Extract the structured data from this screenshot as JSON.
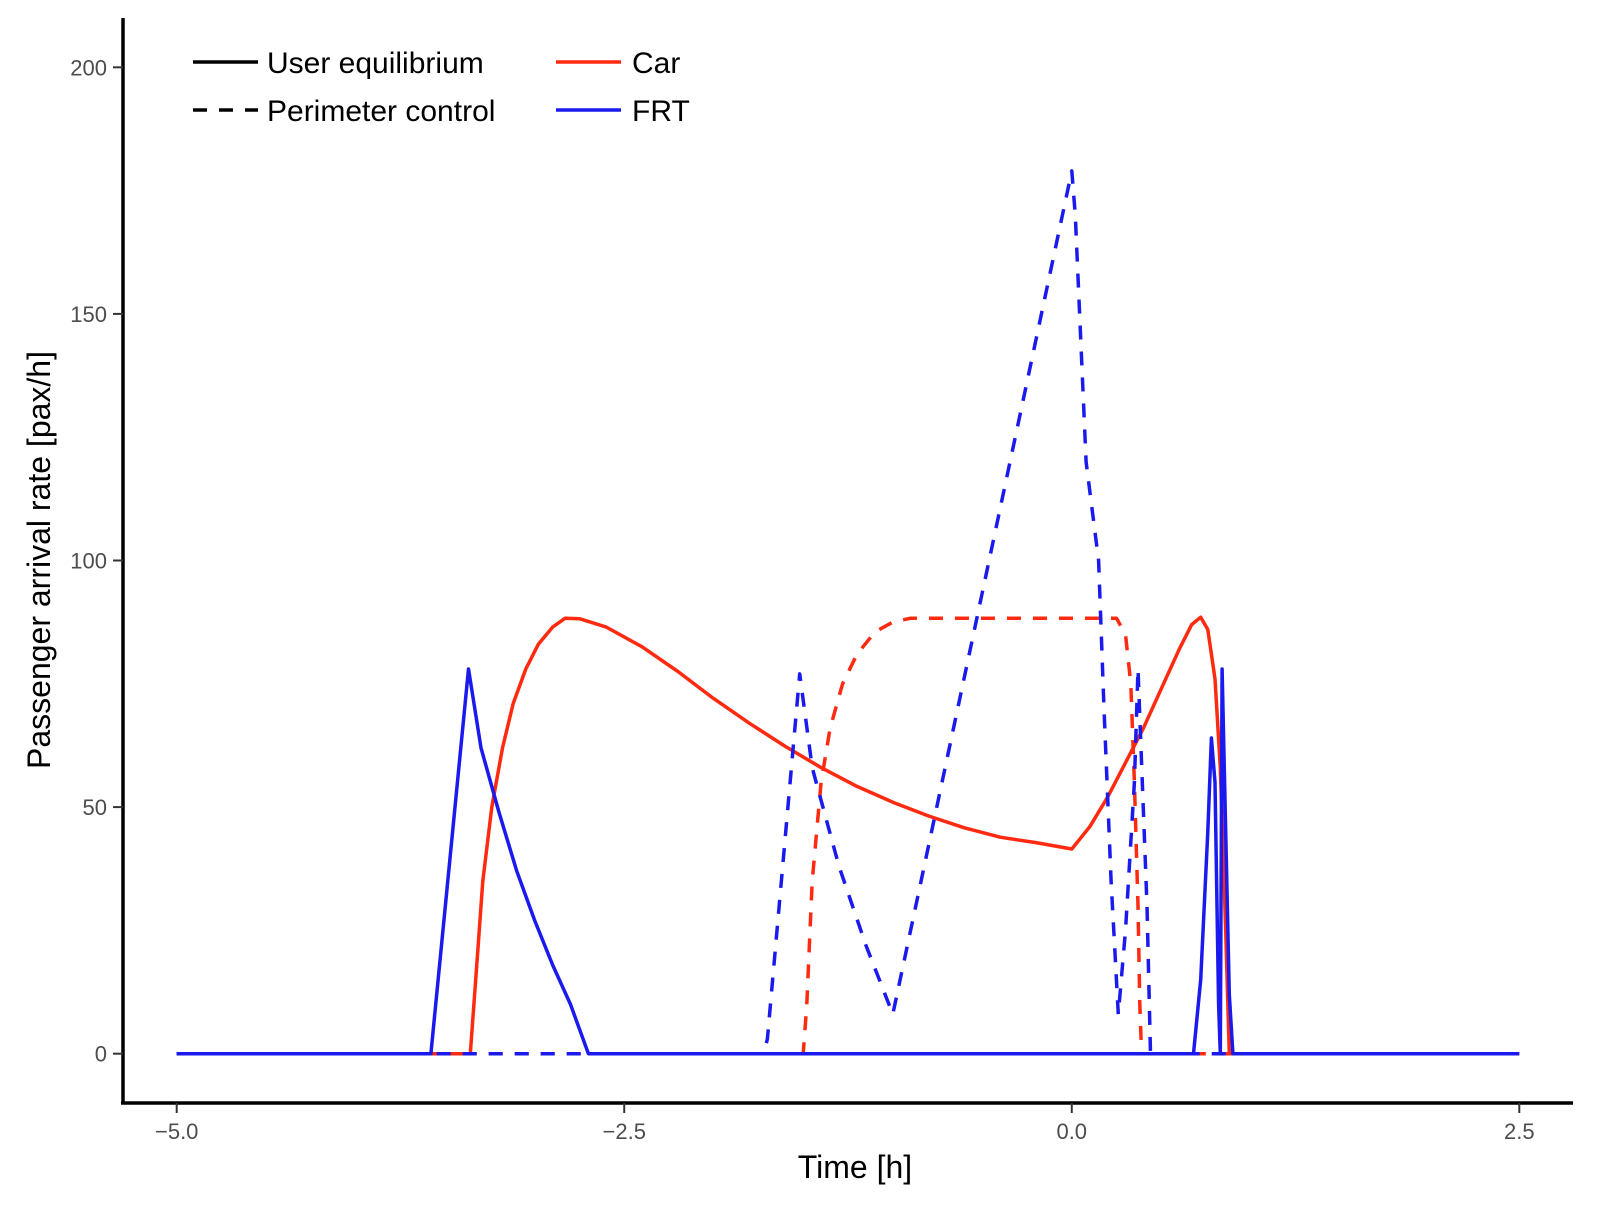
{
  "chart_data": {
    "type": "line",
    "title": "",
    "xlabel": "Time [h]",
    "ylabel": "Passenger arrival rate [pax/h]",
    "xlim": [
      -5.3,
      2.8
    ],
    "ylim": [
      -10,
      210
    ],
    "x_ticks": [
      -5.0,
      -2.5,
      0.0,
      2.5
    ],
    "x_tick_labels": [
      "−5.0",
      "−2.5",
      "0.0",
      "2.5"
    ],
    "y_ticks": [
      0,
      50,
      100,
      150,
      200
    ],
    "y_tick_labels": [
      "0",
      "50",
      "100",
      "150",
      "200"
    ],
    "grid": false,
    "legend": {
      "placement": "top-left",
      "linetype_entries": [
        {
          "label": "User equilibrium",
          "dash": "solid"
        },
        {
          "label": "Perimeter control",
          "dash": "dashed"
        }
      ],
      "color_entries": [
        {
          "label": "Car",
          "color": "#ff2a10"
        },
        {
          "label": "FRT",
          "color": "#1a1aee"
        }
      ]
    },
    "series": [
      {
        "name": "Car",
        "scenario": "User equilibrium",
        "color": "#ff2a10",
        "dash": "solid",
        "points": [
          [
            -5.0,
            0
          ],
          [
            -3.36,
            0
          ],
          [
            -3.33,
            15
          ],
          [
            -3.29,
            35
          ],
          [
            -3.24,
            50
          ],
          [
            -3.18,
            62
          ],
          [
            -3.12,
            71
          ],
          [
            -3.05,
            78
          ],
          [
            -2.98,
            83
          ],
          [
            -2.9,
            86.5
          ],
          [
            -2.83,
            88.3
          ],
          [
            -2.75,
            88.2
          ],
          [
            -2.6,
            86.5
          ],
          [
            -2.4,
            82.5
          ],
          [
            -2.2,
            77.5
          ],
          [
            -2.0,
            72
          ],
          [
            -1.8,
            67
          ],
          [
            -1.6,
            62.3
          ],
          [
            -1.4,
            58
          ],
          [
            -1.2,
            54.2
          ],
          [
            -1.0,
            51
          ],
          [
            -0.8,
            48.2
          ],
          [
            -0.6,
            45.8
          ],
          [
            -0.4,
            43.9
          ],
          [
            -0.2,
            42.8
          ],
          [
            0.0,
            41.5
          ],
          [
            0.1,
            46
          ],
          [
            0.2,
            52
          ],
          [
            0.3,
            59
          ],
          [
            0.4,
            66
          ],
          [
            0.5,
            74
          ],
          [
            0.6,
            82
          ],
          [
            0.67,
            87
          ],
          [
            0.72,
            88.5
          ],
          [
            0.76,
            86
          ],
          [
            0.8,
            76
          ],
          [
            0.83,
            58
          ],
          [
            0.86,
            25
          ],
          [
            0.88,
            0
          ],
          [
            2.5,
            0
          ]
        ]
      },
      {
        "name": "Car",
        "scenario": "Perimeter control",
        "color": "#ff2a10",
        "dash": "dashed",
        "points": [
          [
            -5.0,
            0
          ],
          [
            -1.5,
            0
          ],
          [
            -1.48,
            10
          ],
          [
            -1.45,
            35
          ],
          [
            -1.4,
            55
          ],
          [
            -1.35,
            66
          ],
          [
            -1.28,
            75
          ],
          [
            -1.2,
            81
          ],
          [
            -1.1,
            85.5
          ],
          [
            -1.0,
            87.5
          ],
          [
            -0.9,
            88.3
          ],
          [
            0.0,
            88.3
          ],
          [
            0.25,
            88.3
          ],
          [
            0.3,
            85
          ],
          [
            0.33,
            75
          ],
          [
            0.35,
            55
          ],
          [
            0.37,
            30
          ],
          [
            0.38,
            10
          ],
          [
            0.39,
            0
          ],
          [
            2.5,
            0
          ]
        ]
      },
      {
        "name": "FRT",
        "scenario": "User equilibrium",
        "color": "#1a1aee",
        "dash": "solid",
        "points": [
          [
            -5.0,
            0
          ],
          [
            -3.58,
            0
          ],
          [
            -3.37,
            78
          ],
          [
            -3.3,
            62
          ],
          [
            -3.2,
            49
          ],
          [
            -3.1,
            37
          ],
          [
            -3.0,
            27
          ],
          [
            -2.9,
            18
          ],
          [
            -2.8,
            10
          ],
          [
            -2.7,
            0
          ],
          [
            0.68,
            0
          ],
          [
            0.72,
            15
          ],
          [
            0.76,
            45
          ],
          [
            0.78,
            64
          ],
          [
            0.8,
            55
          ],
          [
            0.82,
            10
          ],
          [
            0.83,
            0
          ],
          [
            0.84,
            78
          ],
          [
            0.88,
            12
          ],
          [
            0.9,
            0
          ],
          [
            2.5,
            0
          ]
        ]
      },
      {
        "name": "FRT",
        "scenario": "Perimeter control",
        "color": "#1a1aee",
        "dash": "dashed",
        "points": [
          [
            -5.0,
            0
          ],
          [
            -3.58,
            0
          ],
          [
            -2.7,
            0
          ],
          [
            -1.72,
            0
          ],
          [
            -1.7,
            3
          ],
          [
            -1.52,
            77
          ],
          [
            -1.45,
            58
          ],
          [
            -1.3,
            38
          ],
          [
            -1.15,
            22
          ],
          [
            -1.0,
            8
          ],
          [
            0.0,
            179
          ],
          [
            0.02,
            170
          ],
          [
            0.08,
            120
          ],
          [
            0.15,
            100
          ],
          [
            0.18,
            70
          ],
          [
            0.22,
            35
          ],
          [
            0.26,
            8
          ],
          [
            0.3,
            25
          ],
          [
            0.35,
            55
          ],
          [
            0.37,
            78
          ],
          [
            0.42,
            30
          ],
          [
            0.44,
            0
          ],
          [
            2.5,
            0
          ]
        ]
      }
    ]
  }
}
